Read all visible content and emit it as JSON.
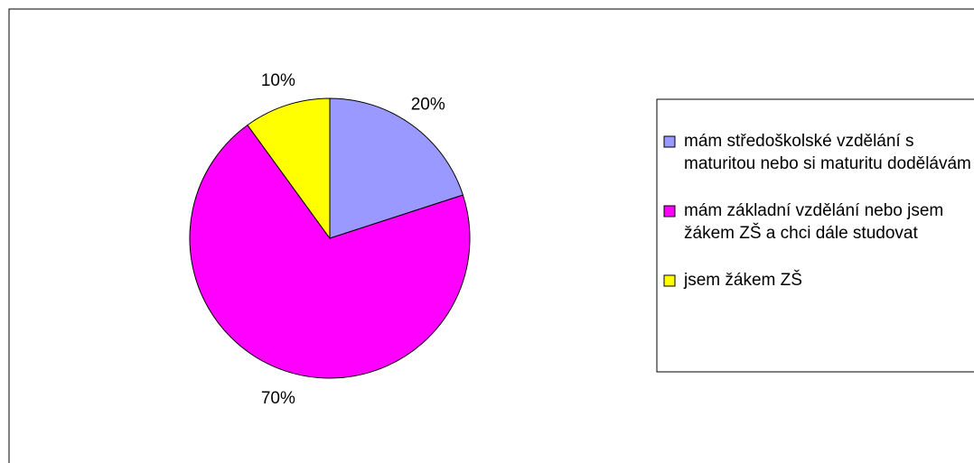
{
  "chart_data": {
    "type": "pie",
    "categories": [
      "mám středoškolské vzdělání s maturitou nebo si maturitu dodělávám",
      "mám základní vzdělání nebo jsem žákem ZŠ a chci dále studovat",
      "jsem žákem ZŠ"
    ],
    "values": [
      20,
      70,
      10
    ],
    "value_labels": [
      "20%",
      "70%",
      "10%"
    ],
    "colors": [
      "#9999ff",
      "#ff00ff",
      "#ffff00"
    ],
    "legend": "right"
  }
}
